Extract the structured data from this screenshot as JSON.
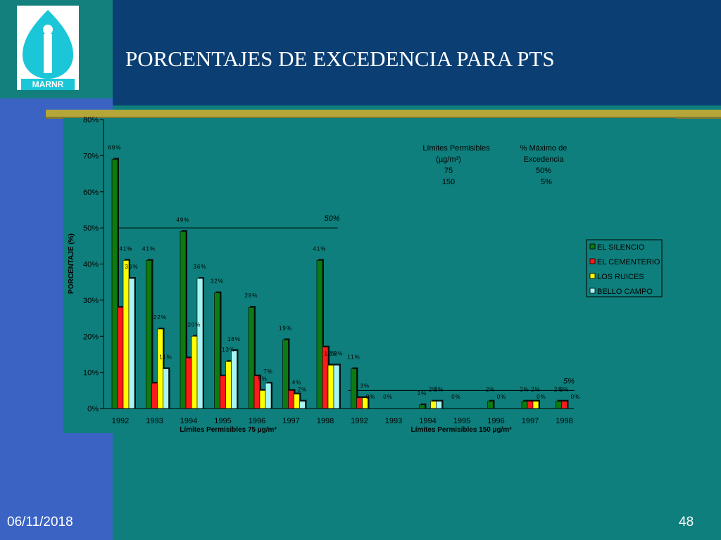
{
  "slide": {
    "title": "PORCENTAJES DE EXCEDENCIA PARA PTS",
    "date": "06/11/2018",
    "page": "48",
    "logo_text": "MARNR"
  },
  "colors": {
    "background": "#0e7f7c",
    "left_band": "#3a63c4",
    "header_band": "#0b3f73",
    "gold_rule": "#b5a63a",
    "EL SILENCIO": "#0d7a12",
    "EL CEMENTERIO": "#ff1a1a",
    "LOS RUICES": "#ffff00",
    "BELLO CAMPO": "#a8f5f5"
  },
  "chart_data": {
    "type": "bar",
    "ylabel": "PORCENTAJE (%)",
    "ylim": [
      0,
      80
    ],
    "y_ticks": [
      "0%",
      "10%",
      "20%",
      "30%",
      "40%",
      "50%",
      "60%",
      "70%",
      "80%"
    ],
    "legend_position": "right",
    "categories": [
      "1992",
      "1993",
      "1994",
      "1995",
      "1996",
      "1997",
      "1998",
      "1992",
      "1993",
      "1994",
      "1995",
      "1996",
      "1997",
      "1998"
    ],
    "group_labels": [
      "Límites Permisibles 75 µg/m³",
      "Límites Permisibles 150 µg/m³"
    ],
    "series": [
      {
        "name": "EL SILENCIO",
        "values": [
          69,
          41,
          49,
          32,
          28,
          19,
          41,
          11,
          0,
          1,
          0,
          2,
          2,
          2
        ]
      },
      {
        "name": "EL CEMENTERIO",
        "values": [
          28,
          7,
          14,
          9,
          9,
          5,
          17,
          3,
          0,
          0,
          0,
          0,
          2,
          2
        ]
      },
      {
        "name": "LOS RUICES",
        "values": [
          41,
          22,
          20,
          13,
          5,
          4,
          12,
          3,
          0,
          2,
          0,
          0,
          2,
          0
        ]
      },
      {
        "name": "BELLO CAMPO",
        "values": [
          36,
          11,
          36,
          16,
          7,
          2,
          12,
          0,
          0,
          2,
          0,
          0,
          0,
          0
        ]
      }
    ],
    "data_labels": [
      {
        "bar": "0-0",
        "text": "69%"
      },
      {
        "bar": "0-2",
        "text": "41%"
      },
      {
        "bar": "0-3",
        "text": "36%"
      },
      {
        "bar": "1-0",
        "text": "41%"
      },
      {
        "bar": "1-2",
        "text": "22%"
      },
      {
        "bar": "1-3",
        "text": "11%"
      },
      {
        "bar": "2-0",
        "text": "49%"
      },
      {
        "bar": "2-2",
        "text": "20%"
      },
      {
        "bar": "2-3",
        "text": "36%"
      },
      {
        "bar": "3-0",
        "text": "32%"
      },
      {
        "bar": "3-2",
        "text": "13%"
      },
      {
        "bar": "3-3",
        "text": "16%"
      },
      {
        "bar": "4-0",
        "text": "28%"
      },
      {
        "bar": "4-2",
        "text": "5%"
      },
      {
        "bar": "4-3",
        "text": "7%"
      },
      {
        "bar": "5-0",
        "text": "19%"
      },
      {
        "bar": "5-2",
        "text": "4%"
      },
      {
        "bar": "5-3",
        "text": "2%"
      },
      {
        "bar": "6-0",
        "text": "41%"
      },
      {
        "bar": "6-2",
        "text": "12%"
      },
      {
        "bar": "6-3",
        "text": "12%"
      },
      {
        "bar": "7-0",
        "text": "11%"
      },
      {
        "bar": "7-2",
        "text": "3%"
      },
      {
        "bar": "7-3",
        "text": "0%"
      },
      {
        "bar": "8-0",
        "text": "0%"
      },
      {
        "bar": "9-0",
        "text": "1%"
      },
      {
        "bar": "9-2",
        "text": "2%"
      },
      {
        "bar": "9-3",
        "text": "2%"
      },
      {
        "bar": "10-0",
        "text": "0%"
      },
      {
        "bar": "11-0",
        "text": "2%"
      },
      {
        "bar": "11-2",
        "text": "0%"
      },
      {
        "bar": "12-0",
        "text": "2%"
      },
      {
        "bar": "12-2",
        "text": "2%"
      },
      {
        "bar": "12-3",
        "text": "0%"
      },
      {
        "bar": "13-0",
        "text": "2%"
      },
      {
        "bar": "13-1",
        "text": "2%"
      },
      {
        "bar": "13-3",
        "text": "0%"
      }
    ],
    "reference_lines": [
      {
        "value": 50,
        "label": "50%",
        "group": 0
      },
      {
        "value": 5,
        "label": "5%",
        "group": 1
      }
    ],
    "limits_table": {
      "headers": [
        "Límites Permisibles",
        "% Máximo de"
      ],
      "headers2": [
        "(µg/m³)",
        "Excedencia"
      ],
      "rows": [
        [
          "75",
          "50%"
        ],
        [
          "150",
          "5%"
        ]
      ]
    }
  }
}
